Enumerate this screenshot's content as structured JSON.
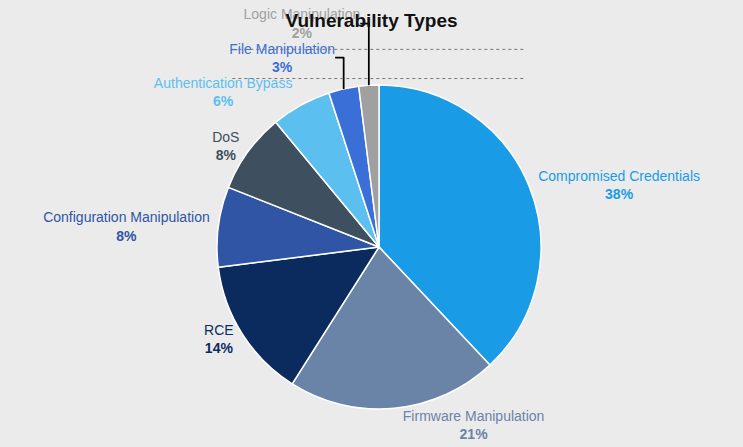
{
  "chart_data": {
    "type": "pie",
    "title": "Vulnerability Types",
    "categories": [
      "Compromised Credentials",
      "Firmware Manipulation",
      "RCE",
      "Configuration Manipulation",
      "DoS",
      "Authentication Bypass",
      "File Manipulation",
      "Logic Manipulation"
    ],
    "values": [
      38,
      21,
      14,
      8,
      8,
      6,
      3,
      2
    ],
    "value_labels": [
      "38%",
      "21%",
      "14%",
      "8%",
      "8%",
      "6%",
      "3%",
      "2%"
    ],
    "colors": [
      "#1a9be6",
      "#6a84a8",
      "#0b2b5e",
      "#2f55a4",
      "#3e4f60",
      "#5bc0f0",
      "#3a6fd8",
      "#a0a0a0"
    ],
    "data_labels": true
  }
}
